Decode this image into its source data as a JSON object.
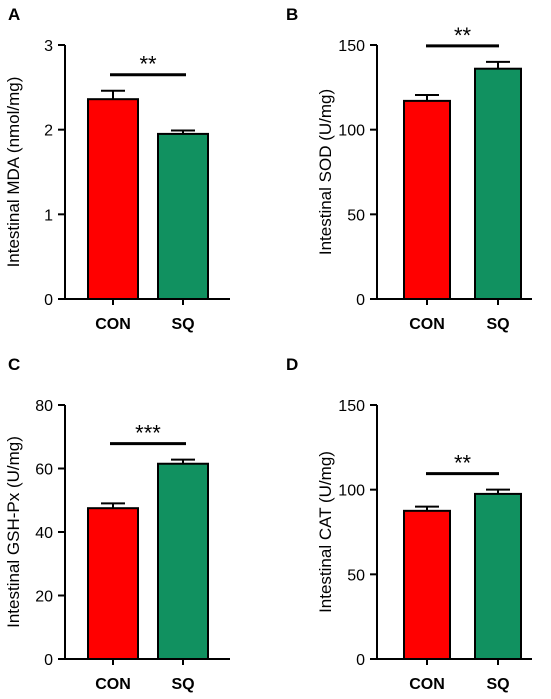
{
  "chart_data": [
    {
      "type": "bar",
      "panel": "A",
      "ylabel": "Intestinal MDA (nmol/mg)",
      "categories": [
        "CON",
        "SQ"
      ],
      "values": [
        2.36,
        1.95
      ],
      "errors": [
        0.1,
        0.04
      ],
      "colors": [
        "#ff0000",
        "#119160"
      ],
      "ylim": [
        0,
        3
      ],
      "yticks": [
        "0",
        "1",
        "2",
        "3"
      ],
      "significance": "**"
    },
    {
      "type": "bar",
      "panel": "B",
      "ylabel": "Intestinal SOD (U/mg)",
      "categories": [
        "CON",
        "SQ"
      ],
      "values": [
        117,
        136
      ],
      "errors": [
        3.5,
        4
      ],
      "colors": [
        "#ff0000",
        "#119160"
      ],
      "ylim": [
        0,
        150
      ],
      "yticks": [
        "0",
        "50",
        "100",
        "150"
      ],
      "significance": "**"
    },
    {
      "type": "bar",
      "panel": "C",
      "ylabel": "Intestinal GSH-Px (U/mg)",
      "categories": [
        "CON",
        "SQ"
      ],
      "values": [
        47.5,
        61.5
      ],
      "errors": [
        1.5,
        1.3
      ],
      "colors": [
        "#ff0000",
        "#119160"
      ],
      "ylim": [
        0,
        80
      ],
      "yticks": [
        "0",
        "20",
        "40",
        "60",
        "80"
      ],
      "significance": "***"
    },
    {
      "type": "bar",
      "panel": "D",
      "ylabel": "Intestinal CAT (U/mg)",
      "categories": [
        "CON",
        "SQ"
      ],
      "values": [
        87.5,
        97.5
      ],
      "errors": [
        2.5,
        2.5
      ],
      "colors": [
        "#ff0000",
        "#119160"
      ],
      "ylim": [
        0,
        150
      ],
      "yticks": [
        "0",
        "50",
        "100",
        "150"
      ],
      "significance": "**"
    }
  ]
}
